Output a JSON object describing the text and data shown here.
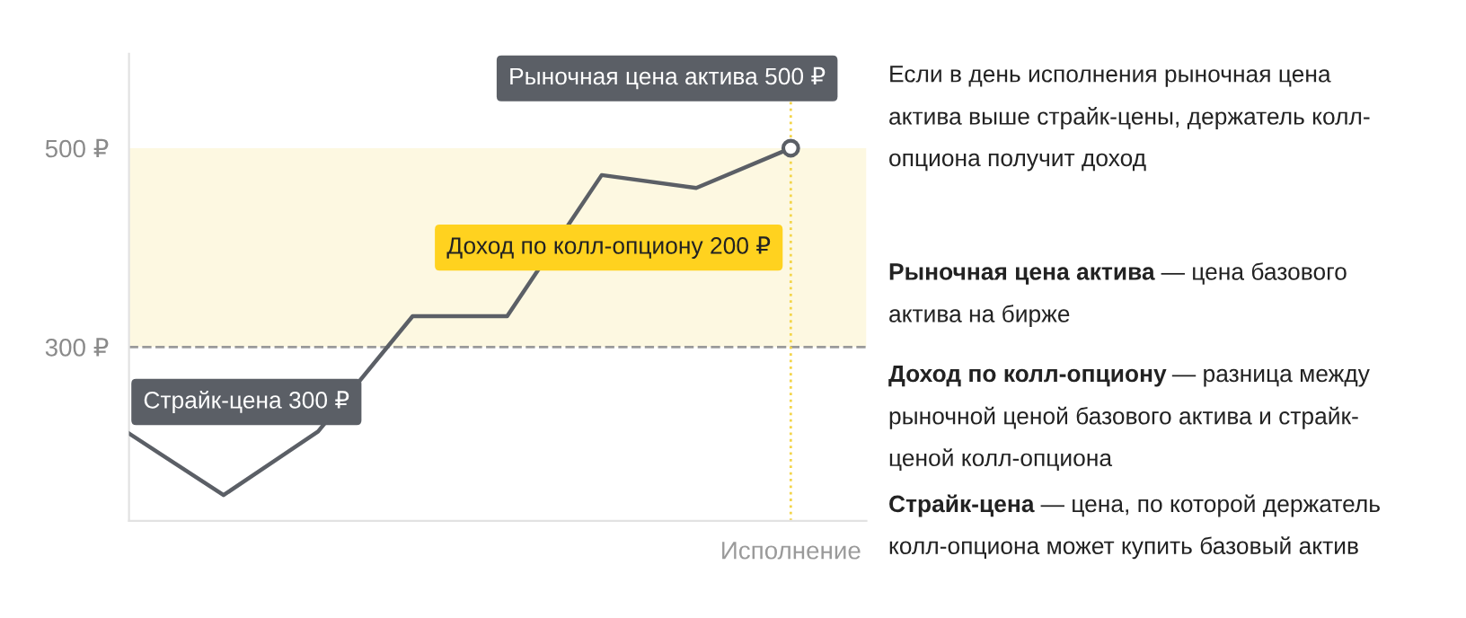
{
  "chart_data": {
    "type": "line",
    "categories": [
      null,
      null,
      null,
      null,
      null,
      null,
      null,
      "Исполнение"
    ],
    "series": [
      {
        "color": "#5b5f66",
        "values": [
          213,
          151,
          215,
          331,
          331,
          473,
          460,
          500
        ]
      }
    ],
    "ylim": [
      125,
      595
    ],
    "yticks": [
      {
        "value": 300,
        "label": "300 ₽"
      },
      {
        "value": 500,
        "label": "500 ₽"
      }
    ],
    "bands": [
      {
        "axis": "y",
        "from": 300,
        "to": 500,
        "color": "#fdf8e1"
      }
    ],
    "ref_lines": [
      {
        "axis": "y",
        "value": 300,
        "color": "#9a9a9a",
        "line_style": "dashed"
      },
      {
        "axis": "x",
        "value": "Исполнение",
        "color": "#f3d54a",
        "line_style": "dotted"
      }
    ],
    "grid": false,
    "legend": false,
    "annotations": [
      {
        "text": "Рыночная цена актива 500 ₽",
        "x": "Исполнение",
        "y": 500
      },
      {
        "text": "Доход по колл-опциону 200 ₽",
        "x": "Исполнение",
        "y": 400
      },
      {
        "text": "Страйк-цена 300 ₽",
        "y": 300
      },
      "Если в день исполнения рыночная цена\nактива выше страйк-цены, держатель колл-\nопциона получит доход",
      "Рыночная цена актива — цена базового\nактива на бирже",
      "Доход по колл-опциону — разница между\nрыночной ценой базового актива и страйк-\nценой колл-опциона",
      "Страйк-цена — цена, по которой держатель\nколл-опциона может купить базовый актив"
    ]
  }
}
